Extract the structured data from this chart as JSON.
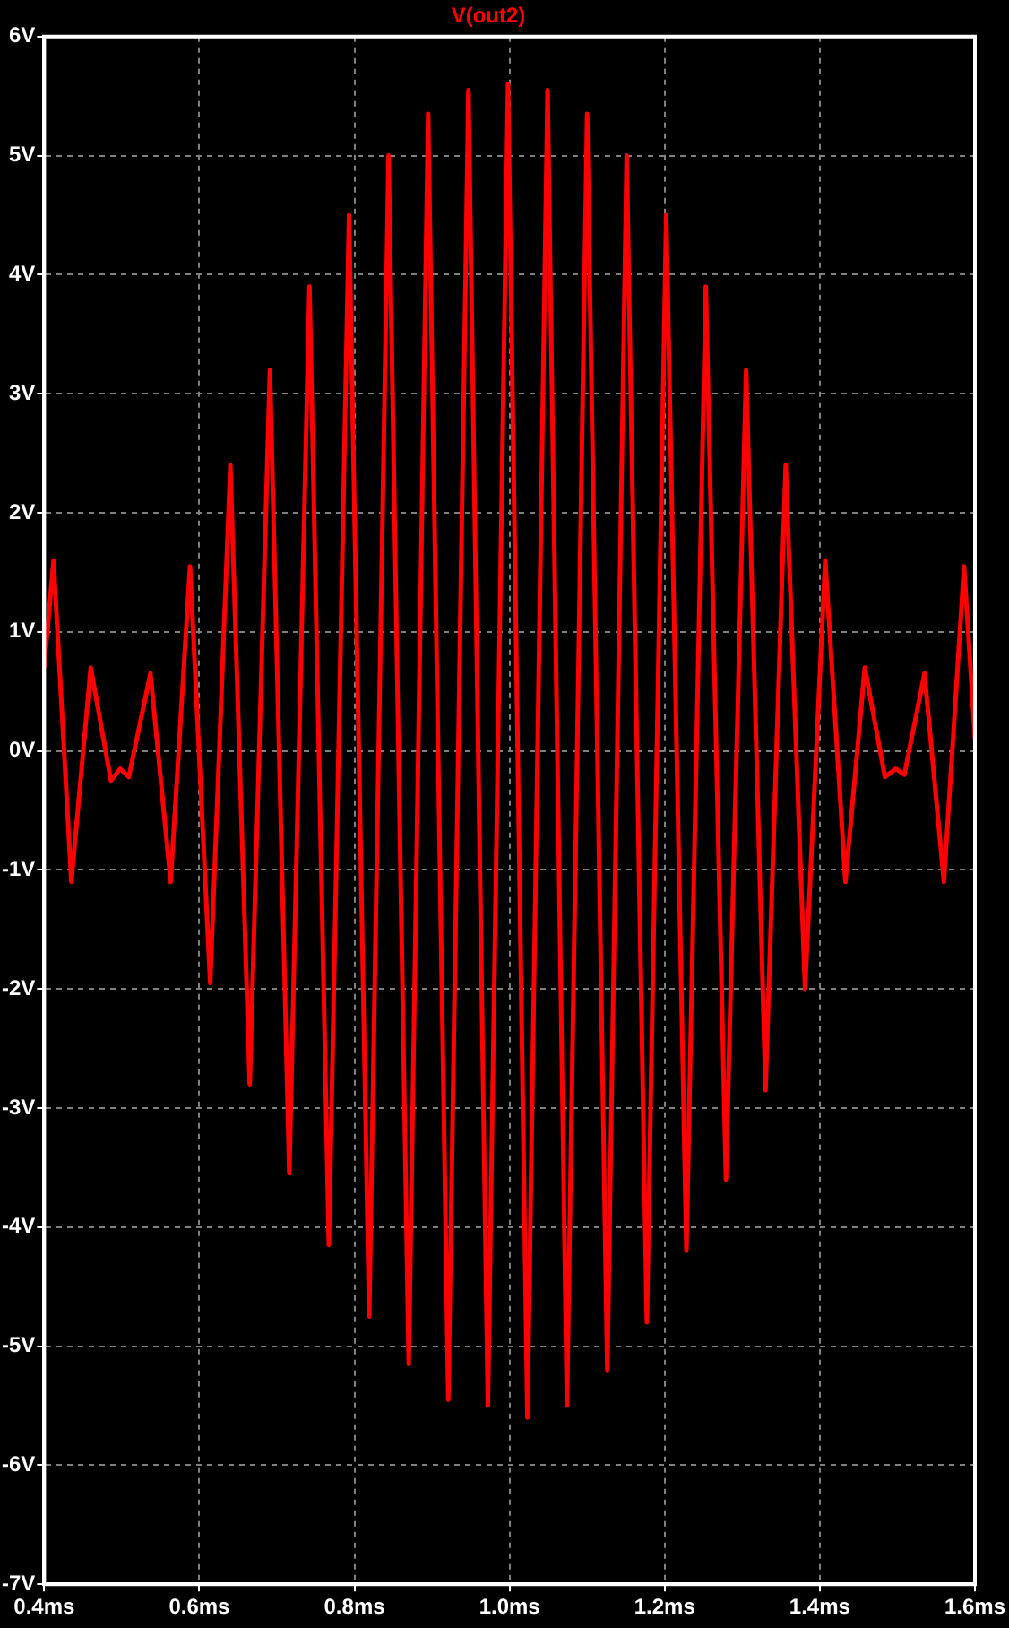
{
  "chart_data": {
    "type": "line",
    "title": "V(out2)",
    "x": [
      0.4,
      0.412,
      0.435,
      0.46,
      0.486,
      0.498,
      0.509,
      0.537,
      0.563,
      0.588,
      0.614,
      0.64,
      0.665,
      0.691,
      0.716,
      0.742,
      0.767,
      0.793,
      0.819,
      0.844,
      0.87,
      0.895,
      0.921,
      0.947,
      0.972,
      0.998,
      1.023,
      1.049,
      1.074,
      1.1,
      1.126,
      1.151,
      1.177,
      1.202,
      1.228,
      1.253,
      1.279,
      1.305,
      1.33,
      1.356,
      1.381,
      1.407,
      1.433,
      1.458,
      1.484,
      1.498,
      1.509,
      1.535,
      1.56,
      1.586,
      1.6
    ],
    "series": [
      {
        "color": "#ff0000",
        "values": [
          0.7,
          1.6,
          -1.1,
          0.7,
          -0.25,
          -0.15,
          -0.22,
          0.65,
          -1.1,
          1.55,
          -1.95,
          2.4,
          -2.8,
          3.2,
          -3.55,
          3.9,
          -4.15,
          4.5,
          -4.75,
          5.0,
          -5.15,
          5.35,
          -5.45,
          5.55,
          -5.5,
          5.6,
          -5.6,
          5.55,
          -5.5,
          5.35,
          -5.2,
          5.0,
          -4.8,
          4.5,
          -4.2,
          3.9,
          -3.6,
          3.2,
          -2.85,
          2.4,
          -2.0,
          1.6,
          -1.1,
          0.7,
          -0.22,
          -0.15,
          -0.2,
          0.65,
          -1.1,
          1.55,
          0.1
        ]
      }
    ],
    "xlim": [
      0.4,
      1.6
    ],
    "xticks": [
      {
        "value": 0.4,
        "label": "0.4ms"
      },
      {
        "value": 0.6,
        "label": "0.6ms"
      },
      {
        "value": 0.8,
        "label": "0.8ms"
      },
      {
        "value": 1.0,
        "label": "1.0ms"
      },
      {
        "value": 1.2,
        "label": "1.2ms"
      },
      {
        "value": 1.4,
        "label": "1.4ms"
      },
      {
        "value": 1.6,
        "label": "1.6ms"
      }
    ],
    "ylim": [
      -7,
      6
    ],
    "yticks": [
      {
        "value": -7,
        "label": "-7V"
      },
      {
        "value": -6,
        "label": "-6V"
      },
      {
        "value": -5,
        "label": "-5V"
      },
      {
        "value": -4,
        "label": "-4V"
      },
      {
        "value": -3,
        "label": "-3V"
      },
      {
        "value": -2,
        "label": "-2V"
      },
      {
        "value": -1,
        "label": "-1V"
      },
      {
        "value": 0,
        "label": "0V"
      },
      {
        "value": 1,
        "label": "1V"
      },
      {
        "value": 2,
        "label": "2V"
      },
      {
        "value": 3,
        "label": "3V"
      },
      {
        "value": 4,
        "label": "4V"
      },
      {
        "value": 5,
        "label": "5V"
      },
      {
        "value": 6,
        "label": "6V"
      }
    ],
    "grid": true,
    "legend": false,
    "marker": "none",
    "line_style": "solid"
  }
}
